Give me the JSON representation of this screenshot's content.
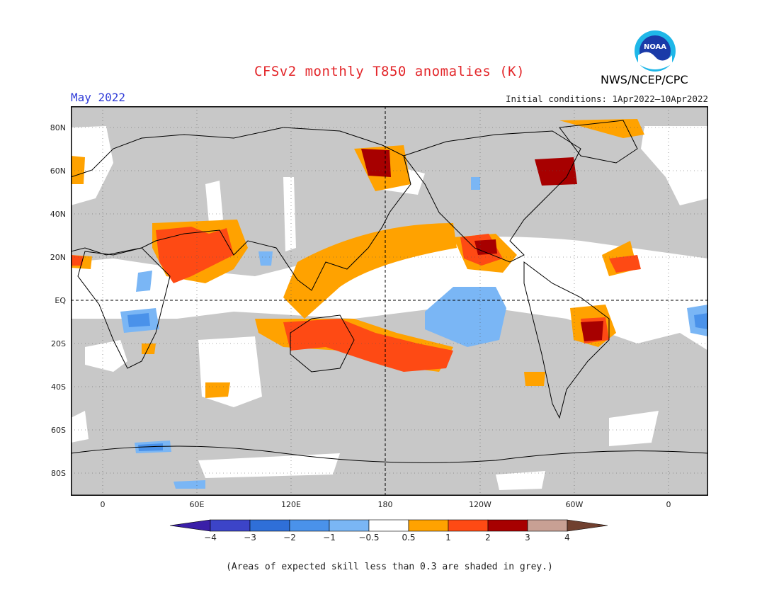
{
  "header": {
    "title": "CFSv2 monthly T850 anomalies (K)",
    "month": "May 2022",
    "initial_conditions": "Initial conditions: 1Apr2022–10Apr2022",
    "agency": "NWS/NCEP/CPC",
    "logo_text": "NOAA"
  },
  "map": {
    "lat_labels": [
      "80N",
      "60N",
      "40N",
      "20N",
      "EQ",
      "20S",
      "40S",
      "60S",
      "80S"
    ],
    "lon_labels": [
      "0",
      "60E",
      "120E",
      "180",
      "120W",
      "60W",
      "0"
    ],
    "background_grey": "#c8c8c8",
    "anomalies": [
      {
        "name": "warm-bering",
        "level": 2
      },
      {
        "name": "warm-hudson",
        "level": 3
      },
      {
        "name": "warm-arabia",
        "level": 1
      },
      {
        "name": "warm-maritime",
        "level": 1
      },
      {
        "name": "warm-spacific",
        "level": 2
      },
      {
        "name": "warm-mexico",
        "level": 2
      },
      {
        "name": "warm-brazil",
        "level": 3
      },
      {
        "name": "cold-epacific",
        "level": -0.5
      }
    ]
  },
  "colorbar": {
    "labels": [
      "−4",
      "−3",
      "−2",
      "−1",
      "−0.5",
      "0.5",
      "1",
      "2",
      "3",
      "4"
    ],
    "colors": [
      "#3a1fa8",
      "#3c44c8",
      "#2f6fd8",
      "#4a92ea",
      "#7ab6f5",
      "#ffffff",
      "#ffa200",
      "#fe4a14",
      "#a70000",
      "#c8a094",
      "#70402f"
    ]
  },
  "footnote": "(Areas of expected skill less than 0.3 are shaded in grey.)"
}
